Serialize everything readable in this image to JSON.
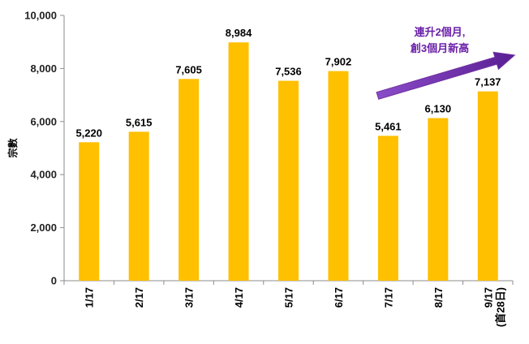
{
  "chart_data": {
    "type": "bar",
    "categories": [
      "1/17",
      "2/17",
      "3/17",
      "4/17",
      "5/17",
      "6/17",
      "7/17",
      "8/17",
      "9/17"
    ],
    "category_sublabels": [
      "",
      "",
      "",
      "",
      "",
      "",
      "",
      "",
      "(首28日)"
    ],
    "values": [
      5220,
      5615,
      7605,
      8984,
      7536,
      7902,
      5461,
      6130,
      7137
    ],
    "data_labels": [
      "5,220",
      "5,615",
      "7,605",
      "8,984",
      "7,536",
      "7,902",
      "5,461",
      "6,130",
      "7,137"
    ],
    "ylabel": "宗數",
    "ylim": [
      0,
      10000
    ],
    "yticks": [
      0,
      2000,
      4000,
      6000,
      8000,
      10000
    ],
    "ytick_labels": [
      "0",
      "2,000",
      "4,000",
      "6,000",
      "8,000",
      "10,000"
    ],
    "grid": false,
    "bar_color": "#FFC000",
    "annotation": {
      "lines": [
        "連升2個月,",
        "創3個月新高"
      ],
      "arrow_from_category": "7/17",
      "arrow_to_category": "9/17",
      "color": "#7030A0"
    }
  }
}
